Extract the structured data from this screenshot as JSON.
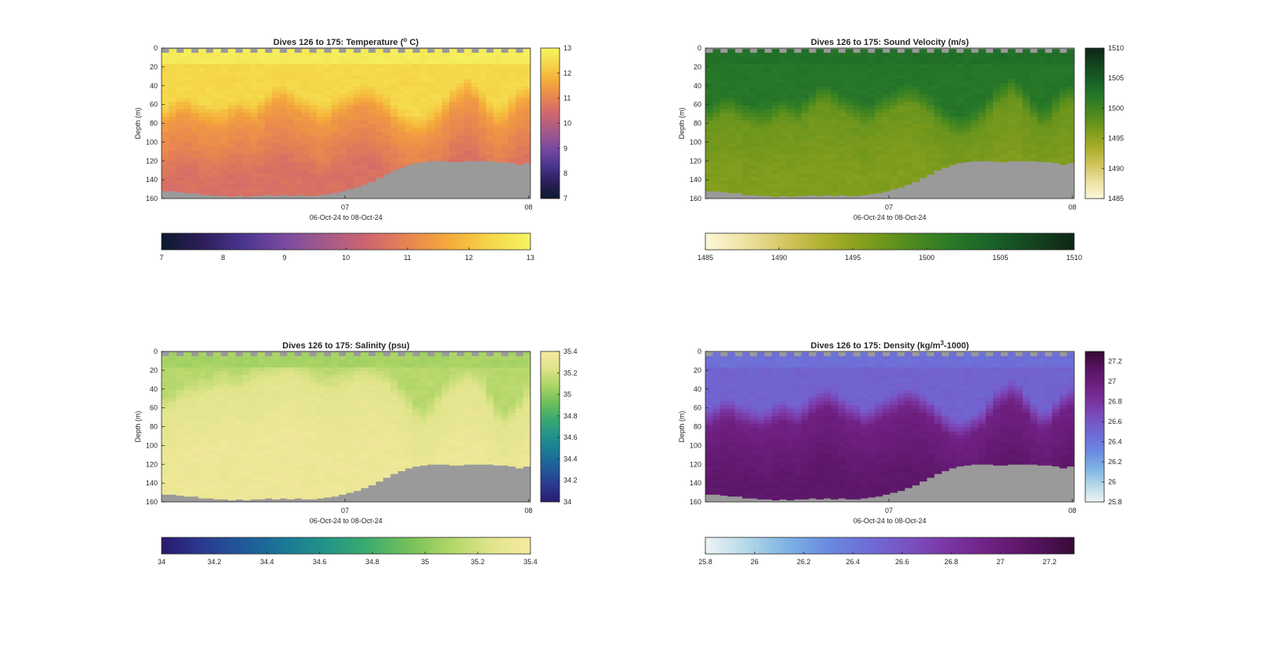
{
  "figure": {
    "background": "#ffffff",
    "missing_color": "#9a9a9a"
  },
  "chart_data": [
    {
      "type": "heatmap",
      "id": "temperature",
      "title_pre": "Dives 126 to 175: Temperature (",
      "title_sup": "o",
      "title_post": " C)",
      "ylabel": "Depth (m)",
      "xlabel": "06-Oct-24 to 08-Oct-24",
      "x_ticks": [
        "07",
        "08"
      ],
      "x_tick_days": [
        1,
        2
      ],
      "x_range_days": [
        0.0,
        2.01
      ],
      "y_range": [
        0,
        160
      ],
      "y_reversed": true,
      "y_ticks": [
        "0",
        "20",
        "40",
        "60",
        "80",
        "100",
        "120",
        "140",
        "160"
      ],
      "clim": [
        7,
        13
      ],
      "side_cbar_ticks": [
        "7",
        "8",
        "9",
        "10",
        "11",
        "12",
        "13"
      ],
      "bottom_cbar_ticks": [
        "7",
        "8",
        "9",
        "10",
        "11",
        "12",
        "13"
      ],
      "colormap": [
        "#0b1a2e",
        "#2d1e5a",
        "#4b3590",
        "#7a4aa0",
        "#a45a8a",
        "#cd6570",
        "#e88352",
        "#f5aa3a",
        "#f5d548",
        "#f5f560"
      ],
      "profile": {
        "surface": 12.8,
        "upper": 12.4,
        "mid": 11.4,
        "deep": 10.6,
        "mld_dives": [
          70,
          65,
          60,
          60,
          65,
          68,
          70,
          72,
          70,
          65,
          62,
          65,
          68,
          62,
          55,
          50,
          48,
          52,
          58,
          62,
          65,
          70,
          68,
          62,
          58,
          55,
          50,
          48,
          50,
          55,
          60,
          68,
          75,
          80,
          82,
          80,
          75,
          70,
          60,
          50,
          45,
          40,
          45,
          55,
          65,
          72,
          70,
          60,
          52,
          48
        ]
      }
    },
    {
      "type": "heatmap",
      "id": "sound_velocity",
      "title_pre": "Dives 126 to 175: Sound Velocity (m/s)",
      "title_sup": "",
      "title_post": "",
      "ylabel": "Depth (m)",
      "xlabel": "06-Oct-24 to 08-Oct-24",
      "x_ticks": [
        "07",
        "08"
      ],
      "x_tick_days": [
        1,
        2
      ],
      "x_range_days": [
        0.0,
        2.01
      ],
      "y_range": [
        0,
        160
      ],
      "y_reversed": true,
      "y_ticks": [
        "0",
        "20",
        "40",
        "60",
        "80",
        "100",
        "120",
        "140",
        "160"
      ],
      "clim": [
        1485,
        1510
      ],
      "side_cbar_ticks": [
        "1485",
        "1490",
        "1495",
        "1500",
        "1505",
        "1510"
      ],
      "bottom_cbar_ticks": [
        "1485",
        "1490",
        "1495",
        "1500",
        "1505",
        "1510"
      ],
      "colormap": [
        "#fdf8d8",
        "#ece2a0",
        "#d3c45e",
        "#a9ae2c",
        "#7e9c1c",
        "#4f8a1e",
        "#2a7a28",
        "#186228",
        "#14441f",
        "#0e2616"
      ],
      "profile": {
        "surface": 1502.8,
        "upper": 1502.2,
        "mid": 1497.2,
        "deep": 1495.9,
        "mld_dives": [
          70,
          65,
          60,
          60,
          65,
          68,
          70,
          72,
          70,
          65,
          62,
          65,
          68,
          62,
          55,
          50,
          48,
          52,
          58,
          62,
          65,
          70,
          68,
          62,
          58,
          55,
          50,
          48,
          50,
          55,
          60,
          68,
          75,
          80,
          82,
          80,
          75,
          70,
          60,
          50,
          45,
          40,
          45,
          55,
          65,
          72,
          70,
          60,
          52,
          48
        ]
      }
    },
    {
      "type": "heatmap",
      "id": "salinity",
      "title_pre": "Dives 126 to 175: Salinity (psu)",
      "title_sup": "",
      "title_post": "",
      "ylabel": "Depth (m)",
      "xlabel": "06-Oct-24 to 08-Oct-24",
      "x_ticks": [
        "07",
        "08"
      ],
      "x_tick_days": [
        1,
        2
      ],
      "x_range_days": [
        0.0,
        2.01
      ],
      "y_range": [
        0,
        160
      ],
      "y_reversed": true,
      "y_ticks": [
        "0",
        "20",
        "40",
        "60",
        "80",
        "100",
        "120",
        "140",
        "160"
      ],
      "clim": [
        34,
        35.4
      ],
      "side_cbar_ticks": [
        "34",
        "34.2",
        "34.4",
        "34.6",
        "34.8",
        "35",
        "35.2",
        "35.4"
      ],
      "bottom_cbar_ticks": [
        "34",
        "34.2",
        "34.4",
        "34.6",
        "34.8",
        "35",
        "35.2",
        "35.4"
      ],
      "colormap": [
        "#2a1a6e",
        "#2b3990",
        "#1f5a9a",
        "#1a7896",
        "#229488",
        "#3aab6e",
        "#72c05a",
        "#aed566",
        "#dfe48a",
        "#f7eaa0"
      ],
      "profile": {
        "surface": 35.07,
        "upper": 35.12,
        "mid": 35.27,
        "deep": 35.33,
        "mld_dives": [
          55,
          50,
          45,
          40,
          38,
          35,
          35,
          30,
          28,
          30,
          32,
          28,
          25,
          22,
          20,
          18,
          15,
          15,
          18,
          20,
          25,
          30,
          32,
          30,
          28,
          25,
          22,
          20,
          22,
          25,
          28,
          35,
          45,
          55,
          65,
          68,
          60,
          50,
          40,
          32,
          28,
          25,
          28,
          35,
          50,
          65,
          70,
          65,
          55,
          45
        ]
      }
    },
    {
      "type": "heatmap",
      "id": "density",
      "title_pre": "Dives 126 to 175: Density (kg/m",
      "title_sup": "3",
      "title_post": "-1000)",
      "ylabel": "Depth (m)",
      "xlabel": "06-Oct-24 to 08-Oct-24",
      "x_ticks": [
        "07",
        "08"
      ],
      "x_tick_days": [
        1,
        2
      ],
      "x_range_days": [
        0.0,
        2.01
      ],
      "y_range": [
        0,
        160
      ],
      "y_reversed": true,
      "y_ticks": [
        "0",
        "20",
        "40",
        "60",
        "80",
        "100",
        "120",
        "140",
        "160"
      ],
      "clim": [
        25.8,
        27.3
      ],
      "side_cbar_ticks": [
        "25.8",
        "26",
        "26.2",
        "26.4",
        "26.6",
        "26.8",
        "27",
        "27.2"
      ],
      "bottom_cbar_ticks": [
        "25.8",
        "26",
        "26.2",
        "26.4",
        "26.6",
        "26.8",
        "27",
        "27.2"
      ],
      "colormap": [
        "#eef4f6",
        "#b4d8e8",
        "#7eb2e4",
        "#6a8ae0",
        "#6e6cd6",
        "#7a50c0",
        "#7a34a0",
        "#6e1f80",
        "#561460",
        "#360a36"
      ],
      "profile": {
        "surface": 26.45,
        "upper": 26.52,
        "mid": 26.95,
        "deep": 27.08,
        "mld_dives": [
          70,
          65,
          60,
          60,
          65,
          68,
          70,
          72,
          70,
          65,
          62,
          65,
          68,
          62,
          55,
          50,
          48,
          52,
          58,
          62,
          65,
          70,
          68,
          62,
          58,
          55,
          50,
          48,
          50,
          55,
          60,
          68,
          75,
          80,
          82,
          80,
          75,
          70,
          60,
          50,
          45,
          40,
          45,
          55,
          65,
          72,
          70,
          60,
          52,
          48
        ]
      }
    }
  ],
  "dives": {
    "count": 50,
    "bottom_depth_m": [
      152,
      152,
      153,
      154,
      154,
      156,
      156,
      157,
      157,
      158,
      157,
      158,
      157,
      157,
      156,
      157,
      156,
      157,
      156,
      157,
      157,
      156,
      155,
      154,
      152,
      150,
      148,
      145,
      142,
      138,
      134,
      130,
      127,
      124,
      122,
      121,
      120,
      120,
      120,
      121,
      121,
      120,
      120,
      120,
      120,
      121,
      121,
      122,
      124,
      122
    ],
    "top_gap_m": 5
  }
}
